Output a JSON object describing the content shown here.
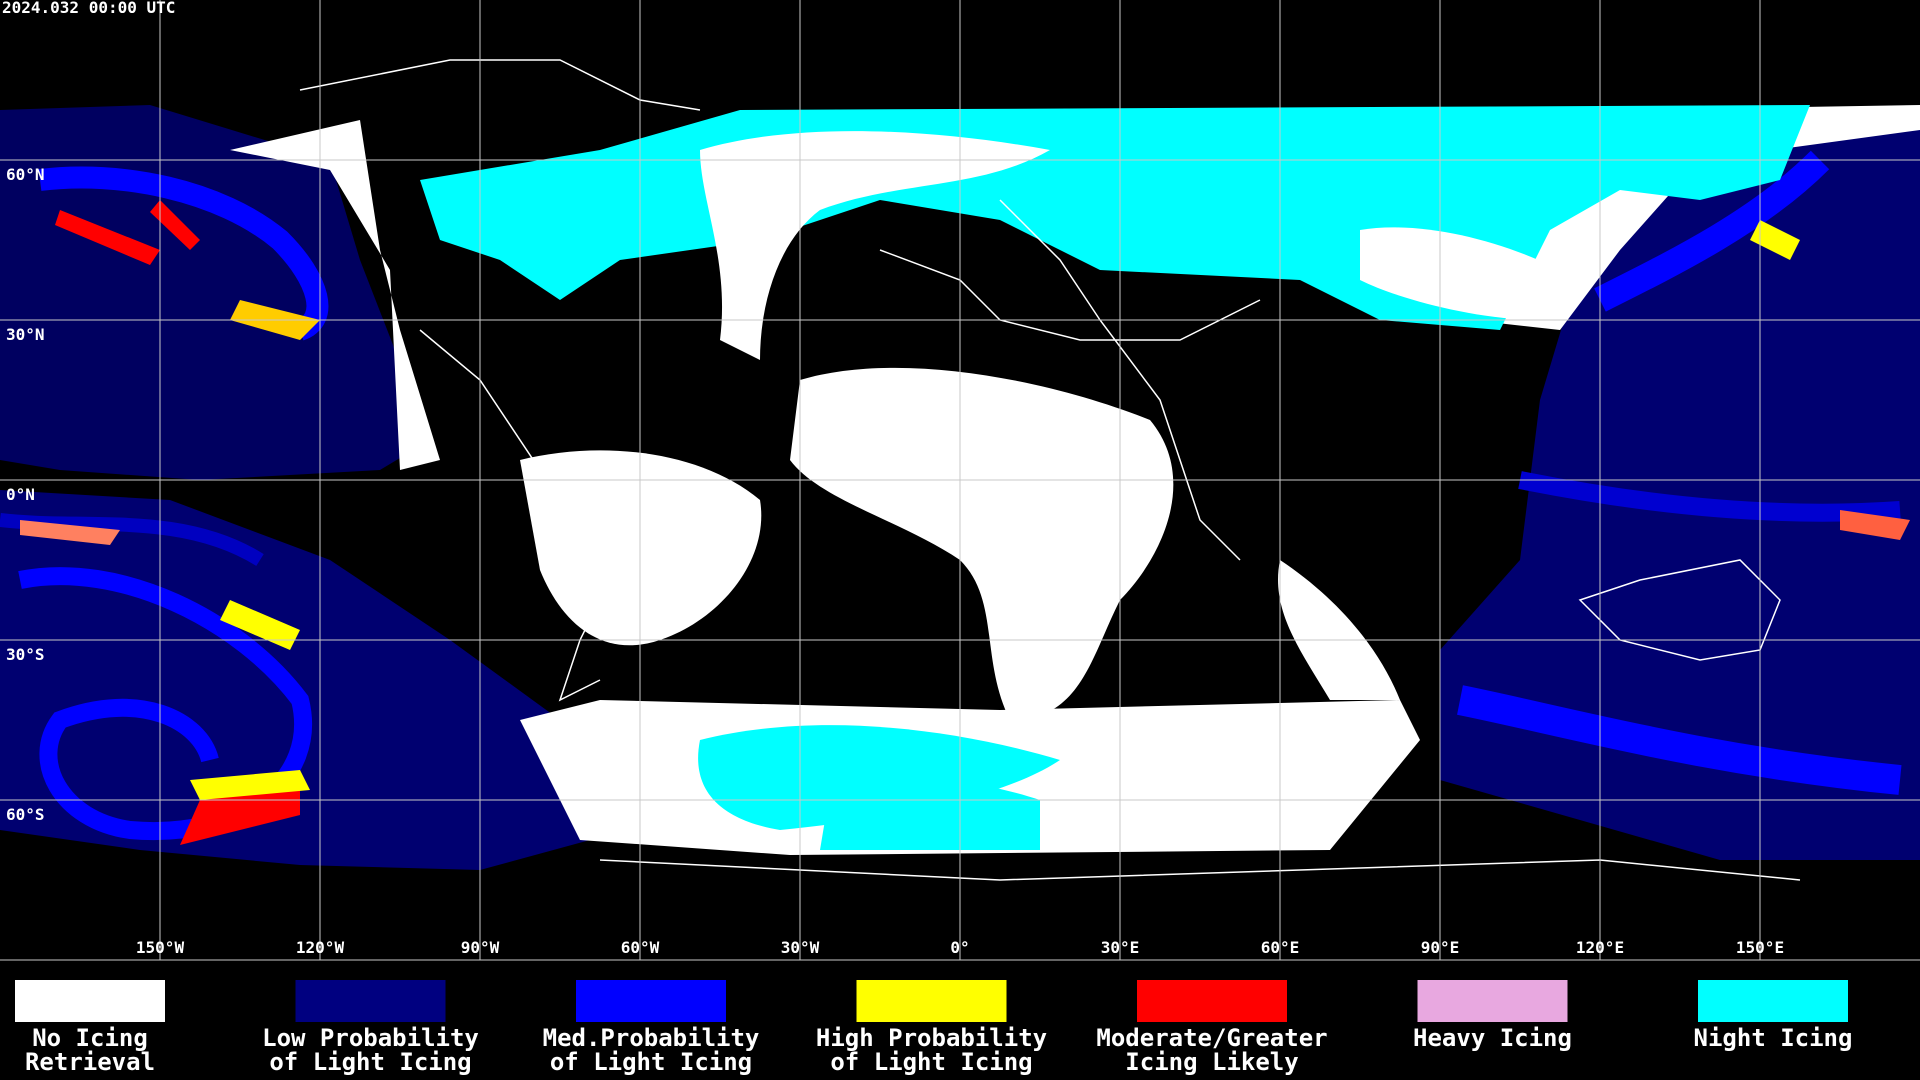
{
  "timestamp": "2024.032 00:00 UTC",
  "map": {
    "lat_labels": [
      "60°N",
      "30°N",
      "0°N",
      "30°S",
      "60°S"
    ],
    "lon_labels": [
      "150°W",
      "120°W",
      "90°W",
      "60°W",
      "30°W",
      "0°",
      "30°E",
      "60°E",
      "90°E",
      "120°E",
      "150°E"
    ]
  },
  "legend": [
    {
      "lines": [
        "No Icing",
        "Retrieval"
      ],
      "color": "#ffffff"
    },
    {
      "lines": [
        "Low Probability",
        "of Light Icing"
      ],
      "color": "#000080"
    },
    {
      "lines": [
        "Med.Probability",
        "of Light Icing"
      ],
      "color": "#0000ff"
    },
    {
      "lines": [
        "High Probability",
        "of Light Icing"
      ],
      "color": "#ffff00"
    },
    {
      "lines": [
        "Moderate/Greater",
        "Icing Likely"
      ],
      "color": "#ff0000"
    },
    {
      "lines": [
        "Heavy Icing"
      ],
      "color": "#e8a8e0"
    },
    {
      "lines": [
        "Night Icing"
      ],
      "color": "#00ffff"
    }
  ]
}
